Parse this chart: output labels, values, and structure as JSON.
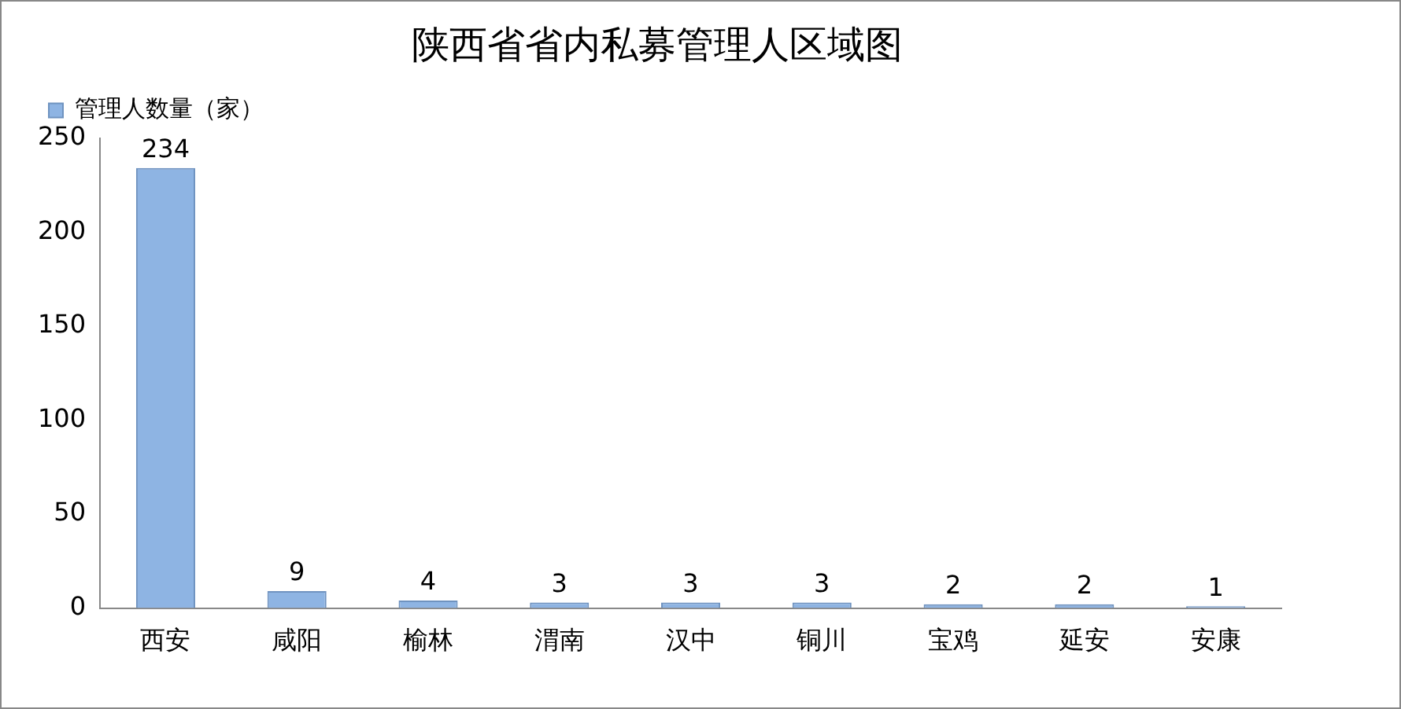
{
  "chart_data": {
    "type": "bar",
    "title": "陕西省省内私募管理人区域图",
    "categories": [
      "西安",
      "咸阳",
      "榆林",
      "渭南",
      "汉中",
      "铜川",
      "宝鸡",
      "延安",
      "安康"
    ],
    "series": [
      {
        "name": "管理人数量（家）",
        "color": "#8eb4e3",
        "values": [
          234,
          9,
          4,
          3,
          3,
          3,
          2,
          2,
          1
        ]
      }
    ],
    "ylim": [
      0,
      250
    ],
    "yticks": [
      0,
      50,
      100,
      150,
      200,
      250
    ],
    "grid": false,
    "legend": "top left",
    "data_labels": true
  }
}
